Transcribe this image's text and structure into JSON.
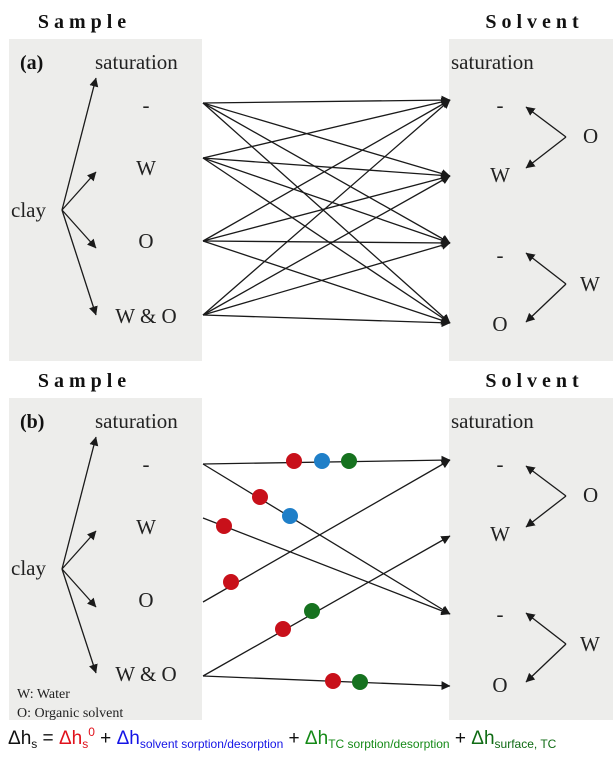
{
  "panels": [
    {
      "id": "a",
      "sample_header": "S a m p l e",
      "solvent_header": "S o l v e n t",
      "label": "(a)",
      "sample_saturation_title": "saturation",
      "solvent_saturation_title": "saturation",
      "root_label": "clay",
      "sample_states": [
        "-",
        "W",
        "O",
        "W & O"
      ],
      "solvent_states": [
        "-",
        "W",
        "-",
        "O"
      ],
      "solvent_groups": [
        "O",
        "W"
      ]
    },
    {
      "id": "b",
      "sample_header": "S a m p l e",
      "solvent_header": "S o l v e n t",
      "label": "(b)",
      "sample_saturation_title": "saturation",
      "solvent_saturation_title": "saturation",
      "root_label": "clay",
      "sample_states": [
        "-",
        "W",
        "O",
        "W & O"
      ],
      "solvent_states": [
        "-",
        "W",
        "-",
        "O"
      ],
      "solvent_groups": [
        "O",
        "W"
      ]
    }
  ],
  "legend": {
    "water": "W: Water",
    "organic": "O: Organic solvent"
  },
  "colors": {
    "red": "#c8101a",
    "blue": "#1f7fc8",
    "green": "#16721f",
    "text_blue": "#1414e6",
    "text_green": "#158a17"
  },
  "equation": {
    "delta": "Δ",
    "h": "h",
    "sub_s": "s",
    "equals": " = ",
    "plus": " + ",
    "term1_sub": "s",
    "term1_sup": "0",
    "term2_sub": "solvent sorption/desorption",
    "term3_sub": "TC sorption/desorption",
    "term4_sub": "surface, TC"
  }
}
